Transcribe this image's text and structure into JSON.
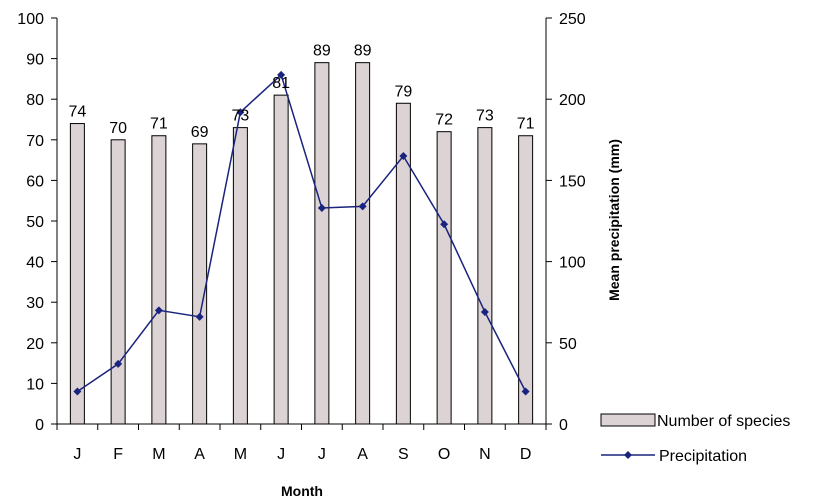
{
  "chart_data": {
    "type": "bar",
    "categories": [
      "J",
      "F",
      "M",
      "A",
      "M",
      "J",
      "J",
      "A",
      "S",
      "O",
      "N",
      "D"
    ],
    "xlabel": "Month",
    "y_left": {
      "label": "",
      "ylim": [
        0,
        100
      ],
      "ticks": [
        0,
        10,
        20,
        30,
        40,
        50,
        60,
        70,
        80,
        90,
        100
      ]
    },
    "y_right": {
      "label": "Mean precipitation (mm)",
      "ylim": [
        0,
        250
      ],
      "ticks": [
        0,
        50,
        100,
        150,
        200,
        250
      ]
    },
    "grid": false,
    "legend_position": "bottom-right",
    "series": [
      {
        "name": "Number of species",
        "type": "bar",
        "axis": "left",
        "color": "#dcd4d4",
        "edge_color": "#000000",
        "values": [
          74,
          70,
          71,
          69,
          73,
          81,
          89,
          89,
          79,
          72,
          73,
          71
        ],
        "labels": [
          "74",
          "70",
          "71",
          "69",
          "73",
          "81",
          "89",
          "89",
          "79",
          "72",
          "73",
          "71"
        ]
      },
      {
        "name": "Precipitation",
        "type": "line",
        "axis": "right",
        "color": "#1a237e",
        "marker": "diamond",
        "values": [
          20,
          37,
          70,
          66,
          192,
          215,
          133,
          134,
          165,
          123,
          69,
          20
        ]
      }
    ]
  }
}
